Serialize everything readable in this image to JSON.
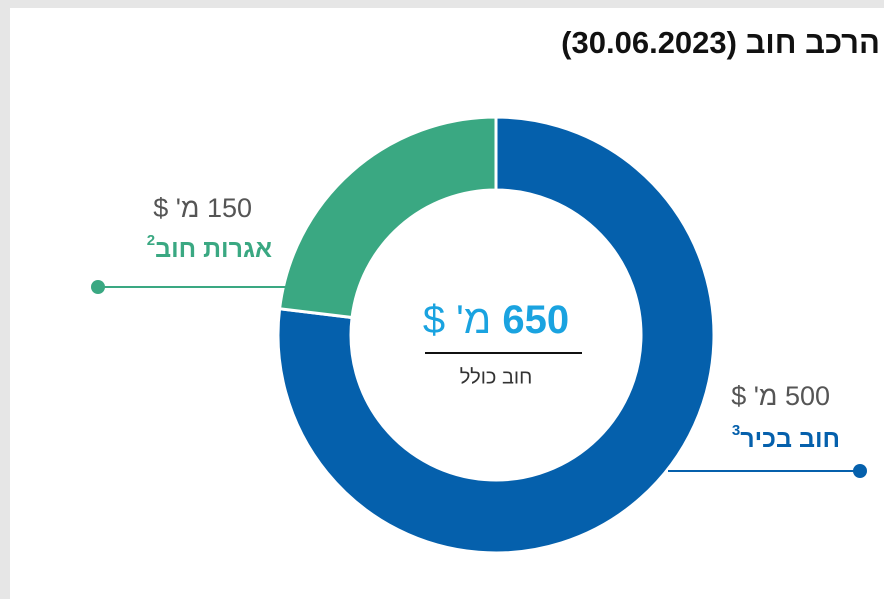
{
  "chart_data": {
    "type": "donut",
    "title": "הרכב חוב (30.06.2023)",
    "categories": [
      "חוב בכיר",
      "אגרות חוב"
    ],
    "footnotes": [
      "3",
      "2"
    ],
    "values": [
      500,
      150
    ],
    "value_labels": [
      "500 מ' $",
      "150 מ' $"
    ],
    "colors": [
      "#0560ac",
      "#3aa882"
    ],
    "total": 650,
    "total_unit": "מ' $",
    "total_caption": "חוב כולל"
  }
}
